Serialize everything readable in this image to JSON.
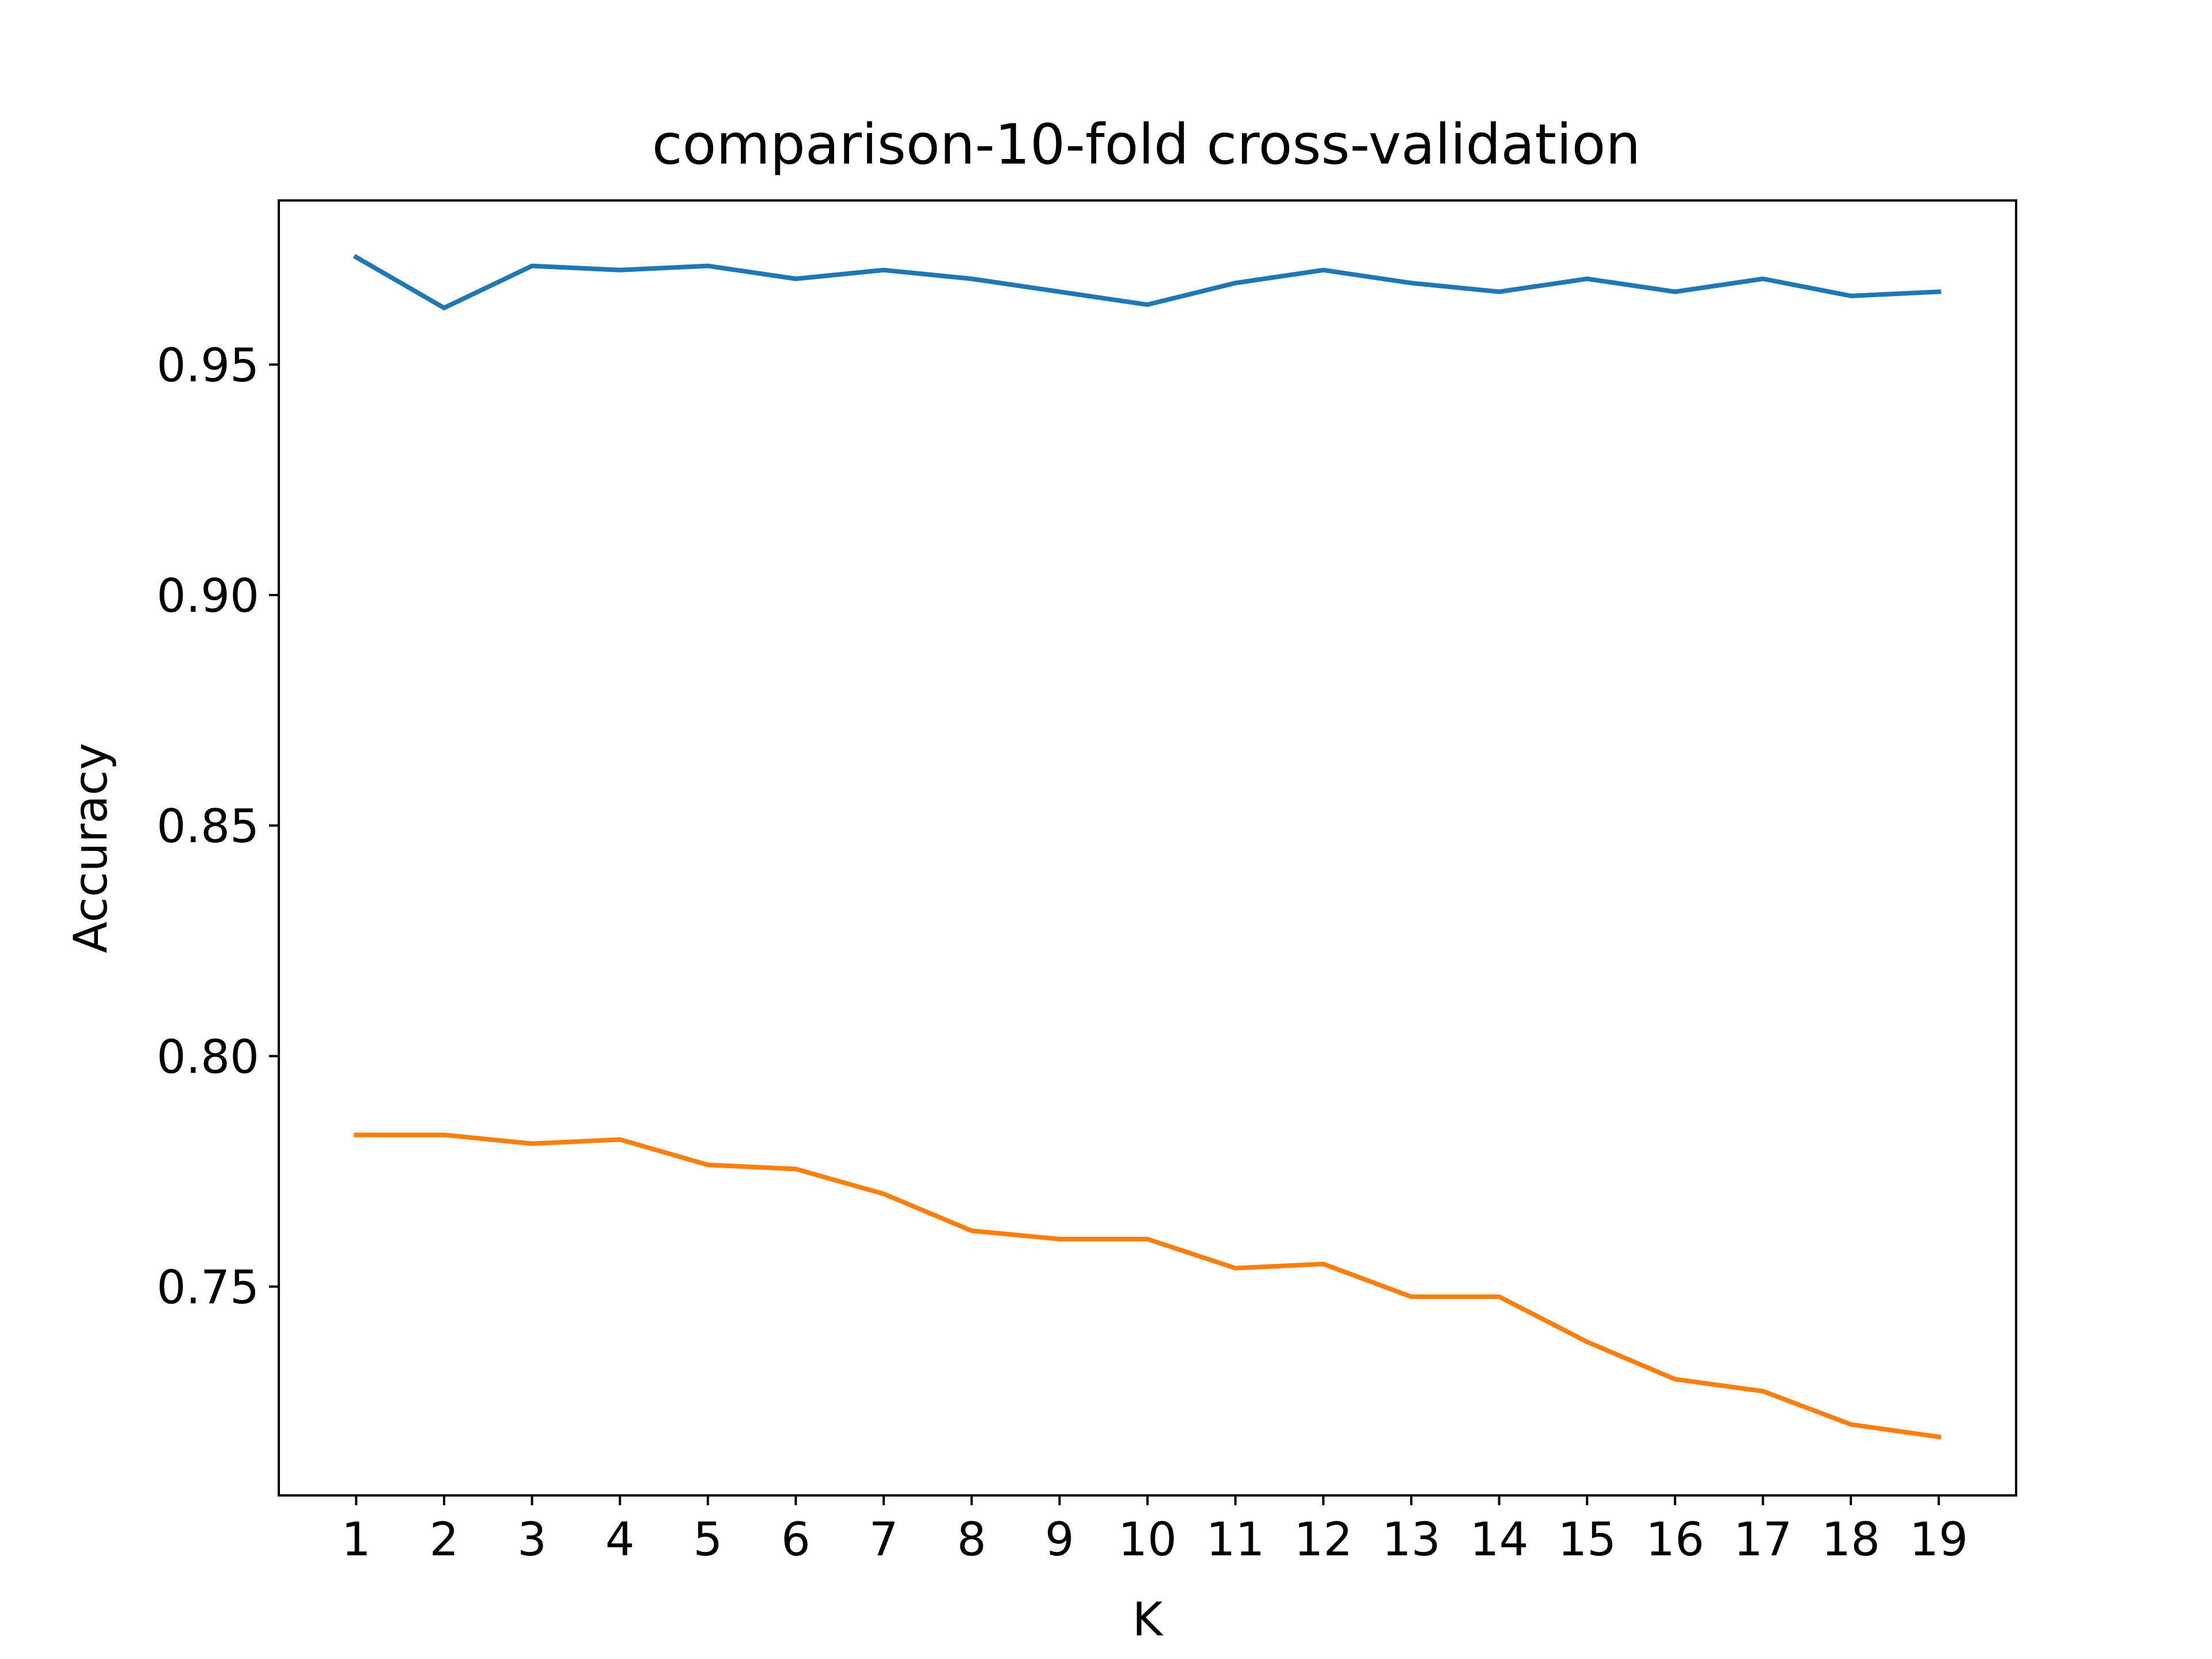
{
  "chart_data": {
    "type": "line",
    "title": "comparison-10-fold cross-validation",
    "xlabel": "K",
    "ylabel": "Accuracy",
    "x": [
      1,
      2,
      3,
      4,
      5,
      6,
      7,
      8,
      9,
      10,
      11,
      12,
      13,
      14,
      15,
      16,
      17,
      18,
      19
    ],
    "xticks": [
      "1",
      "2",
      "3",
      "4",
      "5",
      "6",
      "7",
      "8",
      "9",
      "10",
      "11",
      "12",
      "13",
      "14",
      "15",
      "16",
      "17",
      "18",
      "19"
    ],
    "yticks": [
      0.75,
      0.8,
      0.85,
      0.9,
      0.95
    ],
    "ytick_labels": [
      "0.75",
      "0.80",
      "0.85",
      "0.90",
      "0.95"
    ],
    "xlim": [
      0.12,
      19.88
    ],
    "ylim": [
      0.7047,
      0.9856
    ],
    "grid": false,
    "series": [
      {
        "color": "#1f77b4",
        "values": [
          0.9733,
          0.9623,
          0.9714,
          0.9705,
          0.9714,
          0.9686,
          0.9705,
          0.9686,
          0.9658,
          0.963,
          0.9677,
          0.9705,
          0.9677,
          0.9658,
          0.9686,
          0.9658,
          0.9686,
          0.9649,
          0.9658
        ]
      },
      {
        "color": "#ff7f0e",
        "values": [
          0.7829,
          0.7829,
          0.781,
          0.7819,
          0.7764,
          0.7755,
          0.7701,
          0.7621,
          0.7603,
          0.7603,
          0.754,
          0.7549,
          0.7478,
          0.7478,
          0.738,
          0.7299,
          0.7273,
          0.7201,
          0.7174
        ]
      }
    ]
  }
}
